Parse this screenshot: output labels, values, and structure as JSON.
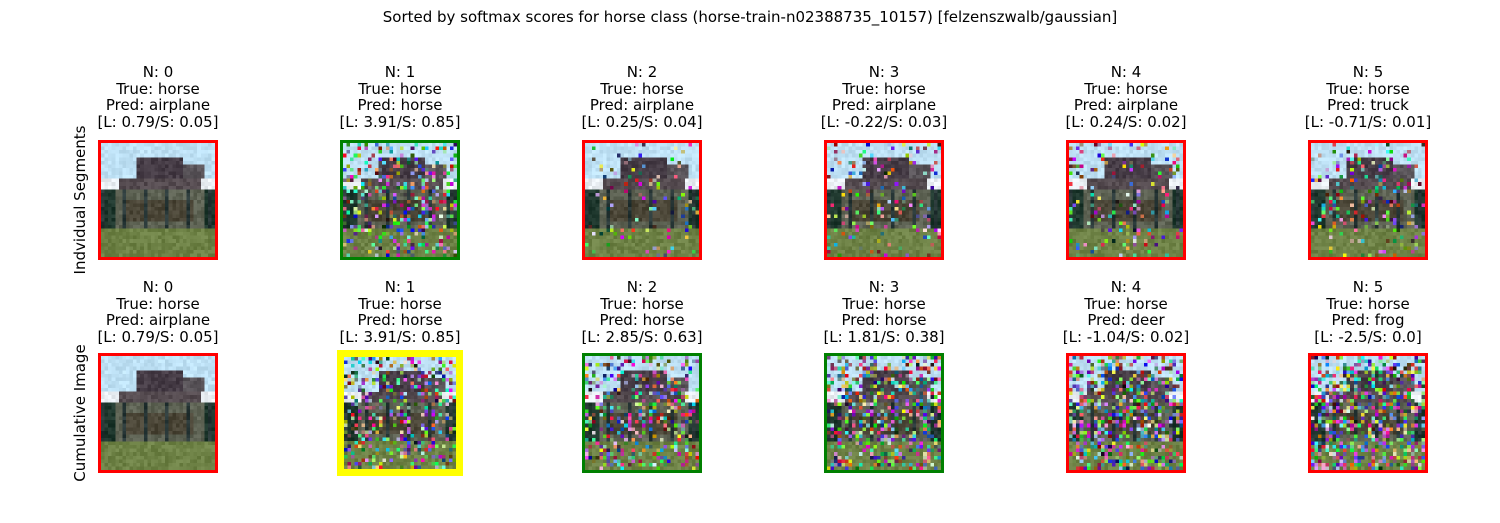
{
  "title": "Sorted by softmax scores for horse class (horse-train-n02388735_10157) [felzenszwalb/gaussian]",
  "rows": [
    {
      "label": "Indvidual Segments",
      "cells": [
        {
          "n": "N: 0",
          "true": "True: horse",
          "pred": "Pred: airplane",
          "scores": "[L: 0.79/S: 0.05]",
          "border": "red",
          "noise": 0.0
        },
        {
          "n": "N: 1",
          "true": "True: horse",
          "pred": "Pred: horse",
          "scores": "[L: 3.91/S: 0.85]",
          "border": "green",
          "noise": 0.55
        },
        {
          "n": "N: 2",
          "true": "True: horse",
          "pred": "Pred: airplane",
          "scores": "[L: 0.25/S: 0.04]",
          "border": "red",
          "noise": 0.15
        },
        {
          "n": "N: 3",
          "true": "True: horse",
          "pred": "Pred: airplane",
          "scores": "[L: -0.22/S: 0.03]",
          "border": "red",
          "noise": 0.25
        },
        {
          "n": "N: 4",
          "true": "True: horse",
          "pred": "Pred: airplane",
          "scores": "[L: 0.24/S: 0.02]",
          "border": "red",
          "noise": 0.25
        },
        {
          "n": "N: 5",
          "true": "True: horse",
          "pred": "Pred: truck",
          "scores": "[L: -0.71/S: 0.01]",
          "border": "red",
          "noise": 0.3
        }
      ]
    },
    {
      "label": "Cumulative Image",
      "cells": [
        {
          "n": "N: 0",
          "true": "True: horse",
          "pred": "Pred: airplane",
          "scores": "[L: 0.79/S: 0.05]",
          "border": "red",
          "noise": 0.0
        },
        {
          "n": "N: 1",
          "true": "True: horse",
          "pred": "Pred: horse",
          "scores": "[L: 3.91/S: 0.85]",
          "border": "yellow",
          "noise": 0.55
        },
        {
          "n": "N: 2",
          "true": "True: horse",
          "pred": "Pred: horse",
          "scores": "[L: 2.85/S: 0.63]",
          "border": "green",
          "noise": 0.6
        },
        {
          "n": "N: 3",
          "true": "True: horse",
          "pred": "Pred: horse",
          "scores": "[L: 1.81/S: 0.38]",
          "border": "green",
          "noise": 0.7
        },
        {
          "n": "N: 4",
          "true": "True: horse",
          "pred": "Pred: deer",
          "scores": "[L: -1.04/S: 0.02]",
          "border": "red",
          "noise": 0.8
        },
        {
          "n": "N: 5",
          "true": "True: horse",
          "pred": "Pred: frog",
          "scores": "[L: -2.5/S: 0.0]",
          "border": "red",
          "noise": 0.9
        }
      ]
    }
  ],
  "colors": {
    "red": "#ff0000",
    "green": "#008000",
    "yellow": "#ffff00"
  }
}
